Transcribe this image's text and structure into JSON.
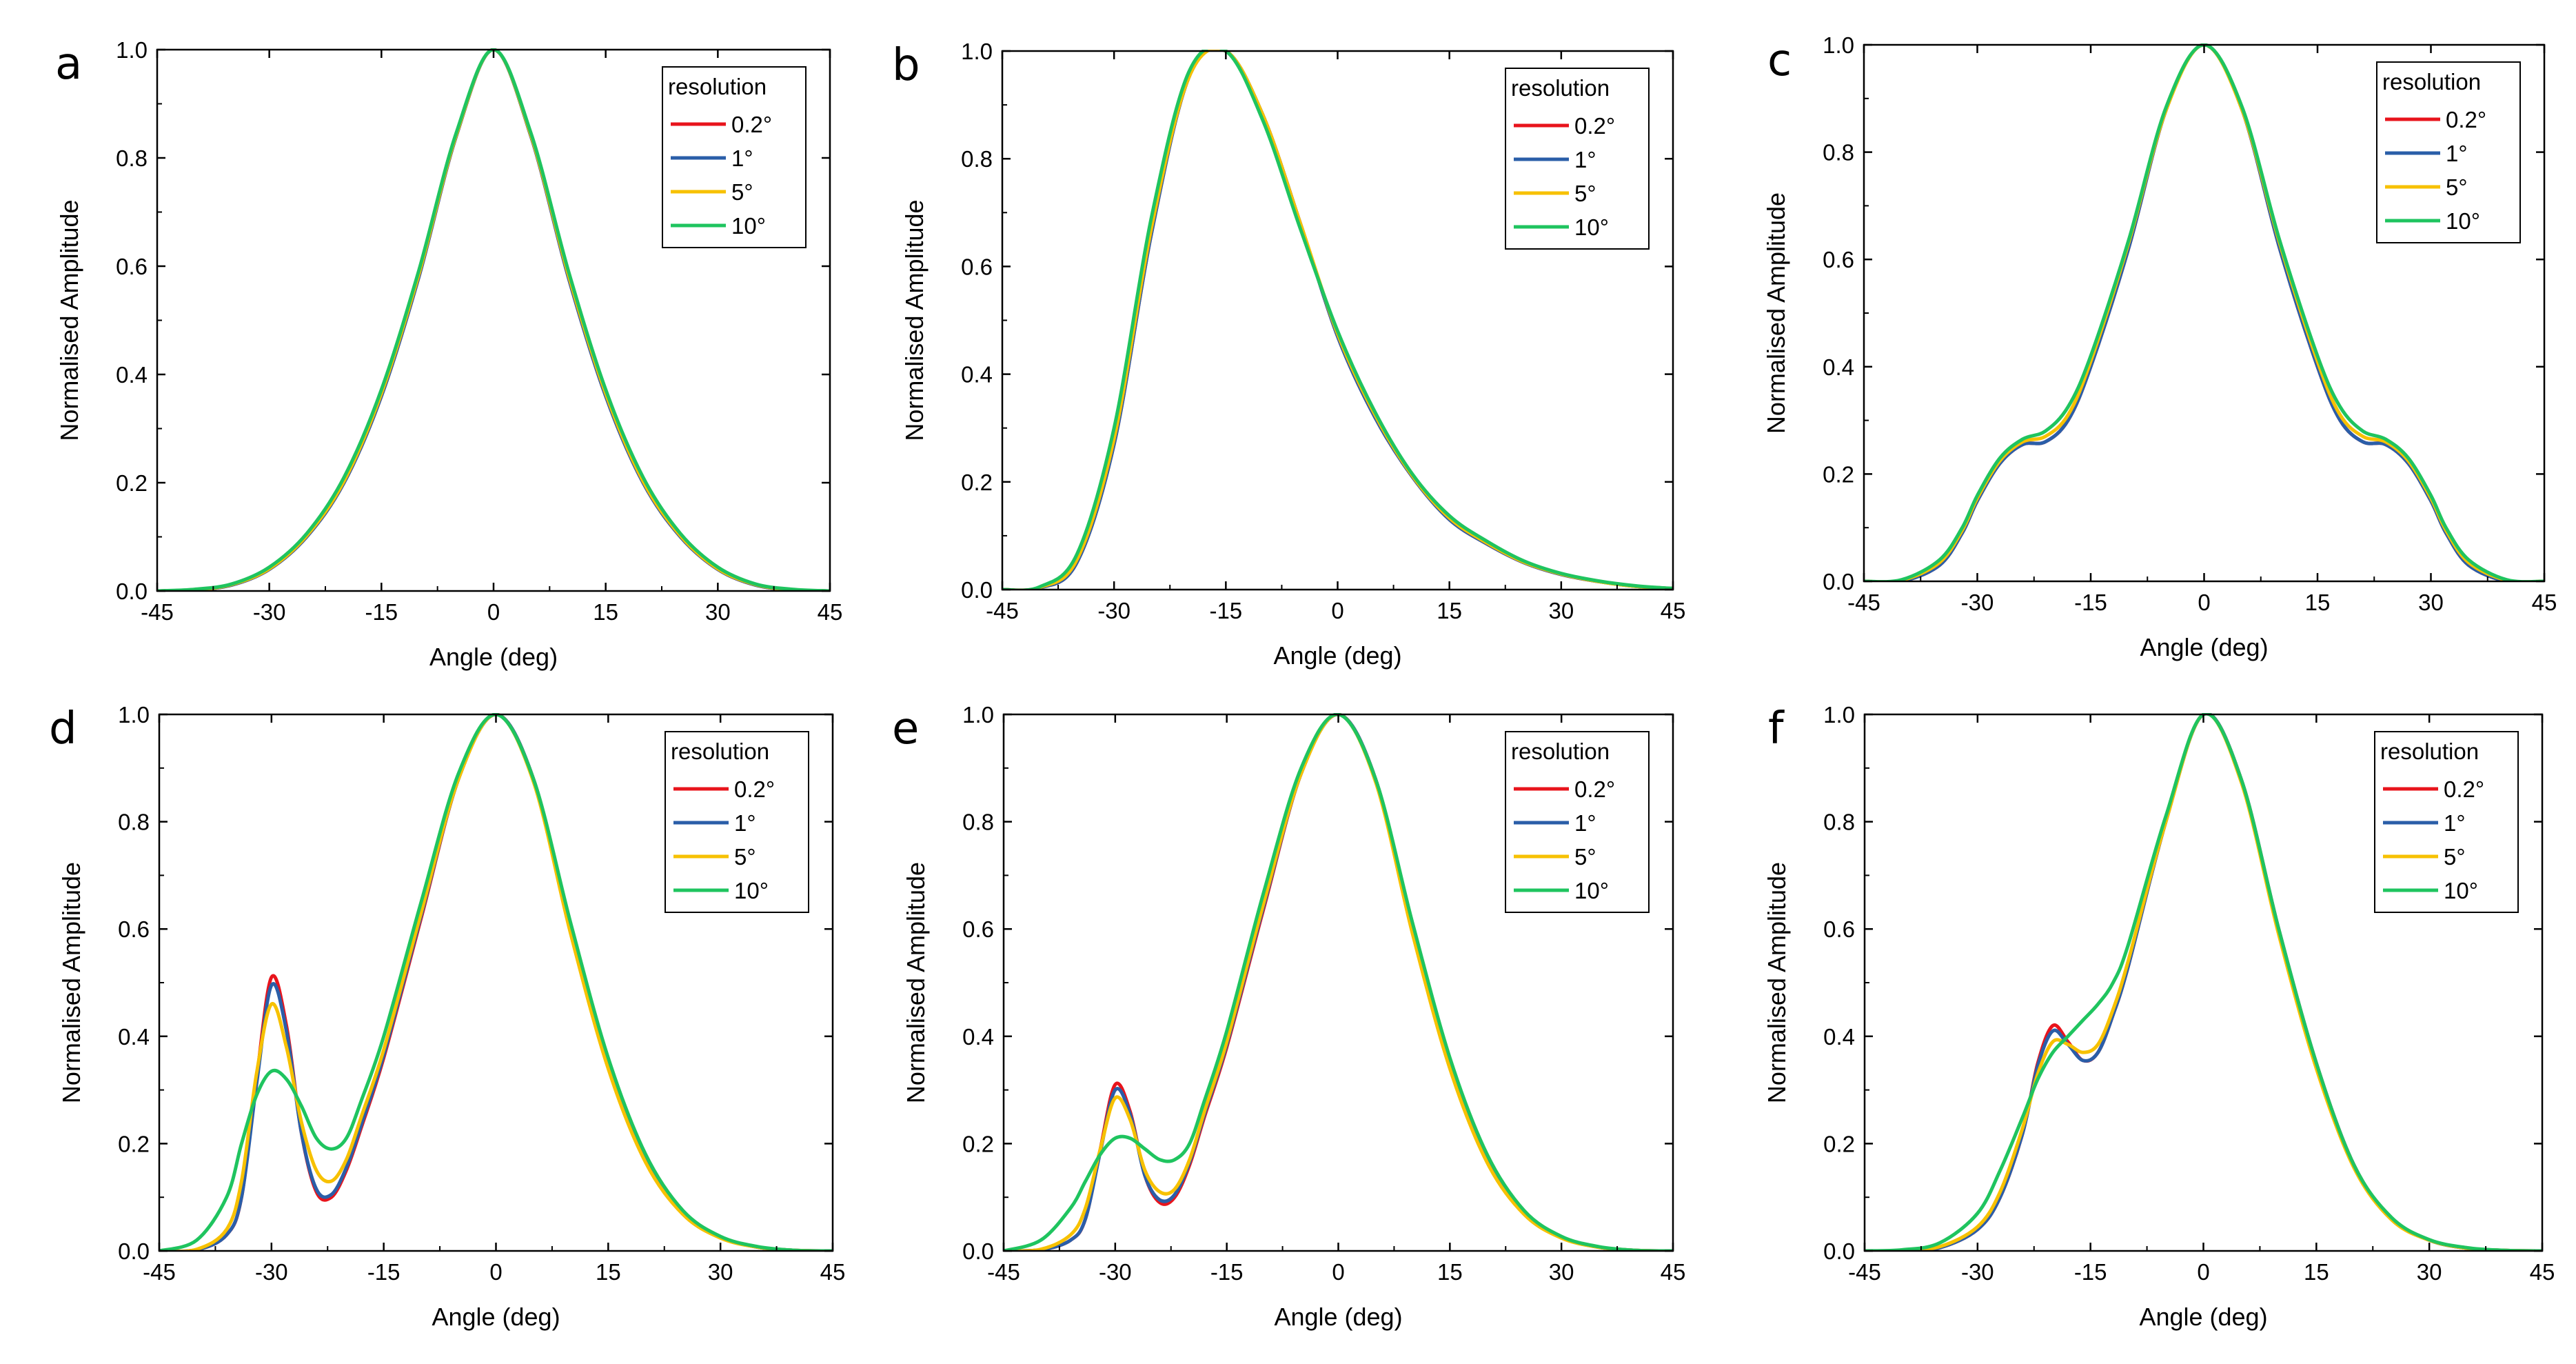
{
  "figure": {
    "colors": {
      "s02": "#e8141c",
      "s1": "#2a5ea8",
      "s5": "#f7c100",
      "s10": "#1fc45f"
    }
  },
  "chart_data": [
    {
      "panel": "a",
      "type": "line",
      "xlabel": "Angle (deg)",
      "ylabel": "Normalised Amplitude",
      "xlim": [
        -45,
        45
      ],
      "ylim": [
        0,
        1.0
      ],
      "xticks": [
        "-45",
        "-30",
        "-15",
        "0",
        "15",
        "30",
        "45"
      ],
      "yticks": [
        "0.0",
        "0.2",
        "0.4",
        "0.6",
        "0.8",
        "1.0"
      ],
      "legend": {
        "title": "resolution",
        "position": "top-right"
      },
      "x": [
        -45,
        -40,
        -35,
        -30,
        -25,
        -20,
        -15,
        -10,
        -5,
        0,
        5,
        10,
        15,
        20,
        25,
        30,
        35,
        40,
        45
      ],
      "series": [
        {
          "name": "0.2°",
          "color": "#e8141c",
          "values": [
            0,
            0.002,
            0.011,
            0.04,
            0.1,
            0.2,
            0.36,
            0.58,
            0.84,
            1.0,
            0.84,
            0.58,
            0.36,
            0.2,
            0.1,
            0.04,
            0.011,
            0.002,
            0
          ]
        },
        {
          "name": "1°",
          "color": "#2a5ea8",
          "values": [
            0,
            0.002,
            0.011,
            0.04,
            0.1,
            0.2,
            0.36,
            0.58,
            0.84,
            1.0,
            0.84,
            0.58,
            0.36,
            0.2,
            0.1,
            0.04,
            0.011,
            0.002,
            0
          ]
        },
        {
          "name": "5°",
          "color": "#f7c100",
          "values": [
            0,
            0.002,
            0.012,
            0.041,
            0.102,
            0.203,
            0.365,
            0.585,
            0.842,
            1.0,
            0.842,
            0.585,
            0.365,
            0.203,
            0.102,
            0.041,
            0.012,
            0.002,
            0
          ]
        },
        {
          "name": "10°",
          "color": "#1fc45f",
          "values": [
            0,
            0.003,
            0.013,
            0.044,
            0.106,
            0.21,
            0.372,
            0.592,
            0.846,
            1.0,
            0.846,
            0.592,
            0.372,
            0.21,
            0.106,
            0.044,
            0.013,
            0.003,
            0
          ]
        }
      ]
    },
    {
      "panel": "b",
      "type": "line",
      "xlabel": "Angle (deg)",
      "ylabel": "Normalised Amplitude",
      "xlim": [
        -45,
        45
      ],
      "ylim": [
        0,
        1.0
      ],
      "xticks": [
        "-45",
        "-30",
        "-15",
        "0",
        "15",
        "30",
        "45"
      ],
      "yticks": [
        "0.0",
        "0.2",
        "0.4",
        "0.6",
        "0.8",
        "1.0"
      ],
      "legend": {
        "title": "resolution",
        "position": "top-right"
      },
      "x": [
        -45,
        -40,
        -35,
        -30,
        -25,
        -20,
        -15,
        -10,
        -5,
        0,
        5,
        10,
        15,
        20,
        25,
        30,
        35,
        40,
        45
      ],
      "series": [
        {
          "name": "0.2°",
          "color": "#e8141c",
          "values": [
            0,
            0.003,
            0.05,
            0.27,
            0.66,
            0.95,
            1.0,
            0.88,
            0.68,
            0.47,
            0.32,
            0.21,
            0.13,
            0.085,
            0.05,
            0.028,
            0.015,
            0.006,
            0.002
          ]
        },
        {
          "name": "1°",
          "color": "#2a5ea8",
          "values": [
            0,
            0.003,
            0.05,
            0.27,
            0.66,
            0.95,
            1.0,
            0.88,
            0.68,
            0.47,
            0.32,
            0.21,
            0.13,
            0.085,
            0.05,
            0.028,
            0.015,
            0.006,
            0.002
          ]
        },
        {
          "name": "5°",
          "color": "#f7c100",
          "values": [
            0,
            0.004,
            0.055,
            0.28,
            0.67,
            0.95,
            1.0,
            0.88,
            0.68,
            0.475,
            0.325,
            0.212,
            0.133,
            0.087,
            0.051,
            0.029,
            0.015,
            0.006,
            0.002
          ]
        },
        {
          "name": "10°",
          "color": "#1fc45f",
          "values": [
            0,
            0.005,
            0.065,
            0.3,
            0.69,
            0.96,
            1.0,
            0.87,
            0.67,
            0.48,
            0.33,
            0.215,
            0.137,
            0.09,
            0.053,
            0.03,
            0.016,
            0.007,
            0.002
          ]
        }
      ]
    },
    {
      "panel": "c",
      "type": "line",
      "xlabel": "Angle (deg)",
      "ylabel": "Normalised Amplitude",
      "xlim": [
        -45,
        45
      ],
      "ylim": [
        0,
        1.0
      ],
      "xticks": [
        "-45",
        "-30",
        "-15",
        "0",
        "15",
        "30",
        "45"
      ],
      "yticks": [
        "0.0",
        "0.2",
        "0.4",
        "0.6",
        "0.8",
        "1.0"
      ],
      "legend": {
        "title": "resolution",
        "position": "top-right"
      },
      "x": [
        -45,
        -40,
        -35,
        -32,
        -30,
        -27,
        -24,
        -21,
        -18,
        -15,
        -10,
        -5,
        0,
        5,
        10,
        15,
        18,
        21,
        24,
        27,
        30,
        32,
        35,
        40,
        45
      ],
      "series": [
        {
          "name": "0.2°",
          "color": "#e8141c",
          "values": [
            0,
            0,
            0.03,
            0.09,
            0.15,
            0.22,
            0.255,
            0.26,
            0.3,
            0.4,
            0.62,
            0.88,
            1.0,
            0.88,
            0.62,
            0.4,
            0.3,
            0.26,
            0.255,
            0.22,
            0.15,
            0.09,
            0.03,
            0,
            0
          ]
        },
        {
          "name": "1°",
          "color": "#2a5ea8",
          "values": [
            0,
            0,
            0.03,
            0.09,
            0.15,
            0.22,
            0.255,
            0.26,
            0.3,
            0.4,
            0.62,
            0.88,
            1.0,
            0.88,
            0.62,
            0.4,
            0.3,
            0.26,
            0.255,
            0.22,
            0.15,
            0.09,
            0.03,
            0,
            0
          ]
        },
        {
          "name": "5°",
          "color": "#f7c100",
          "values": [
            0,
            0.002,
            0.035,
            0.095,
            0.155,
            0.225,
            0.26,
            0.27,
            0.31,
            0.41,
            0.63,
            0.88,
            1.0,
            0.88,
            0.63,
            0.41,
            0.31,
            0.27,
            0.26,
            0.225,
            0.155,
            0.095,
            0.035,
            0.002,
            0
          ]
        },
        {
          "name": "10°",
          "color": "#1fc45f",
          "values": [
            0,
            0.003,
            0.04,
            0.1,
            0.16,
            0.23,
            0.265,
            0.28,
            0.325,
            0.42,
            0.635,
            0.885,
            1.0,
            0.885,
            0.635,
            0.42,
            0.325,
            0.28,
            0.265,
            0.23,
            0.16,
            0.1,
            0.04,
            0.003,
            0
          ]
        }
      ]
    },
    {
      "panel": "d",
      "type": "line",
      "xlabel": "Angle (deg)",
      "ylabel": "Normalised Amplitude",
      "xlim": [
        -45,
        45
      ],
      "ylim": [
        0,
        1.0
      ],
      "xticks": [
        "-45",
        "-30",
        "-15",
        "0",
        "15",
        "30",
        "45"
      ],
      "yticks": [
        "0.0",
        "0.2",
        "0.4",
        "0.6",
        "0.8",
        "1.0"
      ],
      "legend": {
        "title": "resolution",
        "position": "top-right"
      },
      "x": [
        -45,
        -40,
        -36,
        -34,
        -32,
        -30,
        -28,
        -26,
        -24,
        -22,
        -20,
        -18,
        -15,
        -10,
        -5,
        0,
        5,
        10,
        15,
        20,
        25,
        30,
        35,
        40,
        45
      ],
      "series": [
        {
          "name": "0.2°",
          "color": "#e8141c",
          "values": [
            0,
            0.002,
            0.03,
            0.1,
            0.32,
            0.51,
            0.42,
            0.22,
            0.11,
            0.1,
            0.15,
            0.23,
            0.36,
            0.62,
            0.88,
            1.0,
            0.88,
            0.6,
            0.35,
            0.17,
            0.07,
            0.025,
            0.007,
            0.001,
            0
          ]
        },
        {
          "name": "1°",
          "color": "#2a5ea8",
          "values": [
            0,
            0.002,
            0.03,
            0.1,
            0.31,
            0.495,
            0.41,
            0.22,
            0.115,
            0.105,
            0.155,
            0.235,
            0.365,
            0.625,
            0.88,
            1.0,
            0.88,
            0.6,
            0.35,
            0.17,
            0.07,
            0.025,
            0.007,
            0.001,
            0
          ]
        },
        {
          "name": "5°",
          "color": "#f7c100",
          "values": [
            0,
            0.003,
            0.04,
            0.13,
            0.33,
            0.46,
            0.38,
            0.24,
            0.15,
            0.13,
            0.17,
            0.25,
            0.375,
            0.63,
            0.88,
            1.0,
            0.875,
            0.59,
            0.34,
            0.165,
            0.068,
            0.024,
            0.007,
            0.001,
            0
          ]
        },
        {
          "name": "10°",
          "color": "#1fc45f",
          "values": [
            0,
            0.02,
            0.1,
            0.2,
            0.29,
            0.335,
            0.32,
            0.27,
            0.21,
            0.19,
            0.21,
            0.28,
            0.4,
            0.65,
            0.89,
            1.0,
            0.88,
            0.61,
            0.36,
            0.18,
            0.075,
            0.027,
            0.008,
            0.001,
            0
          ]
        }
      ]
    },
    {
      "panel": "e",
      "type": "line",
      "xlabel": "Angle (deg)",
      "ylabel": "Normalised Amplitude",
      "xlim": [
        -45,
        45
      ],
      "ylim": [
        0,
        1.0
      ],
      "xticks": [
        "-45",
        "-30",
        "-15",
        "0",
        "15",
        "30",
        "45"
      ],
      "yticks": [
        "0.0",
        "0.2",
        "0.4",
        "0.6",
        "0.8",
        "1.0"
      ],
      "legend": {
        "title": "resolution",
        "position": "top-right"
      },
      "x": [
        -45,
        -40,
        -36,
        -34,
        -32,
        -30,
        -28,
        -26,
        -24,
        -22,
        -20,
        -18,
        -15,
        -10,
        -5,
        0,
        5,
        10,
        15,
        20,
        25,
        30,
        35,
        40,
        45
      ],
      "series": [
        {
          "name": "0.2°",
          "color": "#e8141c",
          "values": [
            0,
            0.002,
            0.02,
            0.06,
            0.19,
            0.31,
            0.26,
            0.14,
            0.09,
            0.1,
            0.16,
            0.25,
            0.38,
            0.64,
            0.89,
            1.0,
            0.88,
            0.6,
            0.35,
            0.17,
            0.07,
            0.025,
            0.007,
            0.001,
            0
          ]
        },
        {
          "name": "1°",
          "color": "#2a5ea8",
          "values": [
            0,
            0.002,
            0.02,
            0.06,
            0.185,
            0.3,
            0.255,
            0.14,
            0.095,
            0.105,
            0.165,
            0.255,
            0.385,
            0.645,
            0.89,
            1.0,
            0.88,
            0.6,
            0.35,
            0.17,
            0.07,
            0.025,
            0.007,
            0.001,
            0
          ]
        },
        {
          "name": "5°",
          "color": "#f7c100",
          "values": [
            0,
            0.003,
            0.03,
            0.08,
            0.19,
            0.285,
            0.245,
            0.15,
            0.11,
            0.115,
            0.17,
            0.26,
            0.39,
            0.65,
            0.89,
            1.0,
            0.875,
            0.59,
            0.34,
            0.165,
            0.068,
            0.024,
            0.007,
            0.001,
            0
          ]
        },
        {
          "name": "10°",
          "color": "#1fc45f",
          "values": [
            0,
            0.02,
            0.08,
            0.13,
            0.18,
            0.21,
            0.21,
            0.19,
            0.17,
            0.17,
            0.2,
            0.28,
            0.41,
            0.67,
            0.9,
            1.0,
            0.88,
            0.61,
            0.36,
            0.18,
            0.075,
            0.027,
            0.008,
            0.001,
            0
          ]
        }
      ]
    },
    {
      "panel": "f",
      "type": "line",
      "xlabel": "Angle (deg)",
      "ylabel": "Normalised Amplitude",
      "xlim": [
        -45,
        45
      ],
      "ylim": [
        0,
        1.0
      ],
      "xticks": [
        "-45",
        "-30",
        "-15",
        "0",
        "15",
        "30",
        "45"
      ],
      "yticks": [
        "0.0",
        "0.2",
        "0.4",
        "0.6",
        "0.8",
        "1.0"
      ],
      "legend": {
        "title": "resolution",
        "position": "top-right"
      },
      "x": [
        -45,
        -40,
        -35,
        -30,
        -27,
        -24,
        -22,
        -20,
        -18,
        -16,
        -14,
        -12,
        -10,
        -5,
        0,
        5,
        10,
        15,
        20,
        25,
        30,
        35,
        40,
        45
      ],
      "series": [
        {
          "name": "0.2°",
          "color": "#e8141c",
          "values": [
            0,
            0,
            0.006,
            0.04,
            0.1,
            0.22,
            0.35,
            0.42,
            0.39,
            0.355,
            0.37,
            0.44,
            0.53,
            0.8,
            1.0,
            0.88,
            0.6,
            0.35,
            0.16,
            0.06,
            0.02,
            0.005,
            0.001,
            0
          ]
        },
        {
          "name": "1°",
          "color": "#2a5ea8",
          "values": [
            0,
            0,
            0.006,
            0.04,
            0.1,
            0.22,
            0.345,
            0.41,
            0.385,
            0.355,
            0.37,
            0.44,
            0.53,
            0.8,
            1.0,
            0.88,
            0.6,
            0.35,
            0.16,
            0.06,
            0.02,
            0.005,
            0.001,
            0
          ]
        },
        {
          "name": "5°",
          "color": "#f7c100",
          "values": [
            0,
            0.001,
            0.008,
            0.045,
            0.11,
            0.23,
            0.33,
            0.39,
            0.385,
            0.37,
            0.385,
            0.45,
            0.54,
            0.8,
            1.0,
            0.875,
            0.59,
            0.34,
            0.155,
            0.058,
            0.02,
            0.005,
            0.001,
            0
          ]
        },
        {
          "name": "10°",
          "color": "#1fc45f",
          "values": [
            0,
            0.002,
            0.015,
            0.07,
            0.15,
            0.25,
            0.32,
            0.37,
            0.4,
            0.43,
            0.46,
            0.5,
            0.57,
            0.81,
            1.0,
            0.88,
            0.6,
            0.35,
            0.16,
            0.062,
            0.021,
            0.006,
            0.001,
            0
          ]
        }
      ]
    }
  ]
}
